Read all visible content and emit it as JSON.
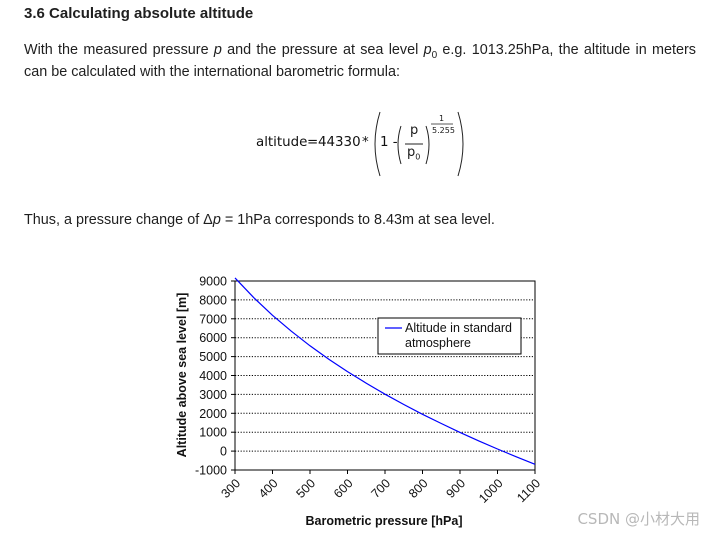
{
  "section": {
    "title": "3.6 Calculating absolute altitude"
  },
  "intro": {
    "t1": "With the measured pressure ",
    "p": "p",
    "t2": " and the pressure at sea level ",
    "p0": "p",
    "p0_sub": "0",
    "t3": " e.g. 1013.25hPa, the altitude in meters can be calculated with the international barometric formula:"
  },
  "formula": {
    "lhs": "altitude",
    "eq": "=",
    "coef": "44330",
    "times": "*",
    "one_minus": "1 -",
    "num": "p",
    "den": "p",
    "den_sub": "0",
    "exp_num": "1",
    "exp_den": "5.255"
  },
  "sentence": {
    "t1": "Thus, a pressure change of Δ",
    "p": "p",
    "t2": " = 1hPa corresponds to 8.43m at sea level."
  },
  "chart_data": {
    "type": "line",
    "xlabel": "Barometric pressure [hPa]",
    "ylabel": "Altitude above sea level [m]",
    "xlim": [
      300,
      1100
    ],
    "ylim": [
      -1000,
      9000
    ],
    "x_ticks": [
      "300",
      "400",
      "500",
      "600",
      "700",
      "800",
      "900",
      "1000",
      "1100"
    ],
    "y_ticks": [
      "9000",
      "8000",
      "7000",
      "6000",
      "5000",
      "4000",
      "3000",
      "2000",
      "1000",
      "0",
      "-1000"
    ],
    "grid": "horizontal dotted",
    "legend_position": "right-center",
    "series": [
      {
        "name": "Altitude in standard atmosphere",
        "color": "#0000ff",
        "x": [
          300,
          350,
          400,
          450,
          500,
          550,
          600,
          650,
          700,
          750,
          800,
          850,
          900,
          950,
          1000,
          1050,
          1100
        ],
        "y": [
          9164,
          8117,
          7185,
          6344,
          5574,
          4865,
          4206,
          3590,
          3012,
          2466,
          1949,
          1458,
          988,
          540,
          111,
          -302,
          -698
        ]
      }
    ]
  },
  "watermark": "CSDN @小材大用"
}
